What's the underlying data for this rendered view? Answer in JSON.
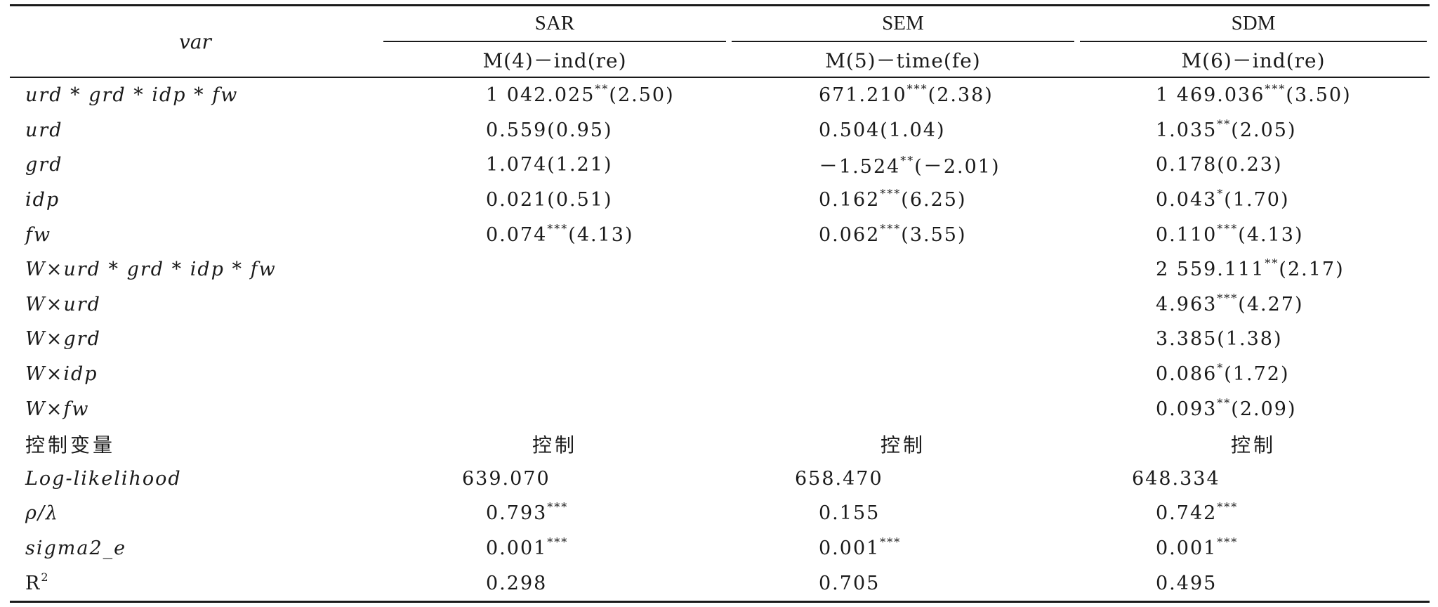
{
  "header": {
    "var_label": "var",
    "groups": [
      "SAR",
      "SEM",
      "SDM"
    ],
    "models": [
      "M(4)－ind(re)",
      "M(5)－time(fe)",
      "M(6)－ind(re)"
    ]
  },
  "rows": [
    {
      "var": "urd * grd * idp * fw",
      "c1": "1 042.025",
      "c1s": "**",
      "c1t": "(2.50)",
      "c2": "671.210",
      "c2s": "***",
      "c2t": "(2.38)",
      "c3": "1 469.036",
      "c3s": "***",
      "c3t": "(3.50)"
    },
    {
      "var": "urd",
      "c1": "0.559(0.95)",
      "c1s": "",
      "c1t": "",
      "c2": "0.504(1.04)",
      "c2s": "",
      "c2t": "",
      "c3": "1.035",
      "c3s": "**",
      "c3t": "(2.05)"
    },
    {
      "var": "grd",
      "c1": "1.074(1.21)",
      "c1s": "",
      "c1t": "",
      "c2": "－1.524",
      "c2s": "**",
      "c2t": "(－2.01)",
      "c3": "0.178(0.23)",
      "c3s": "",
      "c3t": ""
    },
    {
      "var": "idp",
      "c1": "0.021(0.51)",
      "c1s": "",
      "c1t": "",
      "c2": "0.162",
      "c2s": "***",
      "c2t": "(6.25)",
      "c3": "0.043",
      "c3s": "*",
      "c3t": "(1.70)"
    },
    {
      "var": "fw",
      "c1": "0.074",
      "c1s": "***",
      "c1t": "(4.13)",
      "c2": "0.062",
      "c2s": "***",
      "c2t": "(3.55)",
      "c3": "0.110",
      "c3s": "***",
      "c3t": "(4.13)"
    },
    {
      "var": "W×urd * grd * idp * fw",
      "c1": "",
      "c1s": "",
      "c1t": "",
      "c2": "",
      "c2s": "",
      "c2t": "",
      "c3": "2 559.111",
      "c3s": "**",
      "c3t": "(2.17)"
    },
    {
      "var": "W×urd",
      "c1": "",
      "c1s": "",
      "c1t": "",
      "c2": "",
      "c2s": "",
      "c2t": "",
      "c3": "4.963",
      "c3s": "***",
      "c3t": "(4.27)"
    },
    {
      "var": "W×grd",
      "c1": "",
      "c1s": "",
      "c1t": "",
      "c2": "",
      "c2s": "",
      "c2t": "",
      "c3": "3.385(1.38)",
      "c3s": "",
      "c3t": ""
    },
    {
      "var": "W×idp",
      "c1": "",
      "c1s": "",
      "c1t": "",
      "c2": "",
      "c2s": "",
      "c2t": "",
      "c3": "0.086",
      "c3s": "*",
      "c3t": "(1.72)"
    },
    {
      "var": "W×fw",
      "c1": "",
      "c1s": "",
      "c1t": "",
      "c2": "",
      "c2s": "",
      "c2t": "",
      "c3": "0.093",
      "c3s": "**",
      "c3t": "(2.09)"
    }
  ],
  "control_row": {
    "var": "控制变量",
    "c1": "控制",
    "c2": "控制",
    "c3": "控制"
  },
  "stats_rows": [
    {
      "var": "Log-likelihood",
      "c1": "639.070",
      "c1s": "",
      "c2": "658.470",
      "c2s": "",
      "c3": "648.334",
      "c3s": ""
    },
    {
      "var": "ρ/λ",
      "c1": "0.793",
      "c1s": "***",
      "c2": "0.155",
      "c2s": "",
      "c3": "0.742",
      "c3s": "***"
    },
    {
      "var": "sigma2_e",
      "c1": "0.001",
      "c1s": "***",
      "c2": "0.001",
      "c2s": "***",
      "c3": "0.001",
      "c3s": "***"
    }
  ],
  "r2_row": {
    "var": "R",
    "var_sup": "2",
    "c1": "0.298",
    "c2": "0.705",
    "c3": "0.495"
  }
}
